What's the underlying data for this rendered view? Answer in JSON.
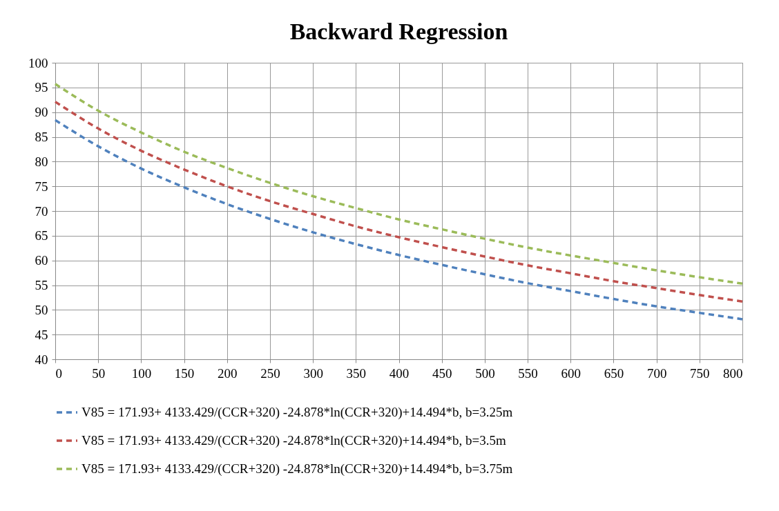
{
  "chart_data": {
    "type": "line",
    "title": "Backward Regression",
    "x": [
      0,
      50,
      100,
      150,
      200,
      250,
      300,
      350,
      400,
      450,
      500,
      550,
      600,
      650,
      700,
      750,
      800
    ],
    "xlim": [
      0,
      800
    ],
    "xticks": [
      0,
      50,
      100,
      150,
      200,
      250,
      300,
      350,
      400,
      450,
      500,
      550,
      600,
      650,
      700,
      750,
      800
    ],
    "ylim": [
      40,
      100
    ],
    "yticks": [
      40,
      45,
      50,
      55,
      60,
      65,
      70,
      75,
      80,
      85,
      90,
      95,
      100
    ],
    "grid": true,
    "legend": "bottom",
    "line_style": "dashed",
    "marker": "none",
    "series": [
      {
        "name": "V85 = 171.93+ 4133.429/(CCR+320) -24.878*ln(CCR+320)+14.494*b, b=3.25m",
        "color": "#4f81bd",
        "values": [
          88.4,
          83.1,
          78.6,
          74.8,
          71.4,
          68.4,
          65.7,
          63.3,
          61.1,
          59.1,
          57.2,
          55.4,
          53.8,
          52.2,
          50.7,
          49.4,
          48.1
        ]
      },
      {
        "name": " V85 = 171.93+ 4133.429/(CCR+320) -24.878*ln(CCR+320)+14.494*b, b=3.5m",
        "color": "#c0504d",
        "values": [
          92.1,
          86.7,
          82.2,
          78.4,
          75.0,
          72.0,
          69.4,
          66.9,
          64.7,
          62.7,
          60.8,
          59.0,
          57.4,
          55.8,
          54.4,
          53.0,
          51.7
        ]
      },
      {
        "name": "V85 = 171.93+ 4133.429/(CCR+320) -24.878*ln(CCR+320)+14.494*b, b=3.75m",
        "color": "#9bbb59",
        "values": [
          95.7,
          90.3,
          85.9,
          82.0,
          78.7,
          75.7,
          73.0,
          70.6,
          68.3,
          66.3,
          64.4,
          62.6,
          61.0,
          59.5,
          58.0,
          56.6,
          55.3
        ]
      }
    ]
  }
}
